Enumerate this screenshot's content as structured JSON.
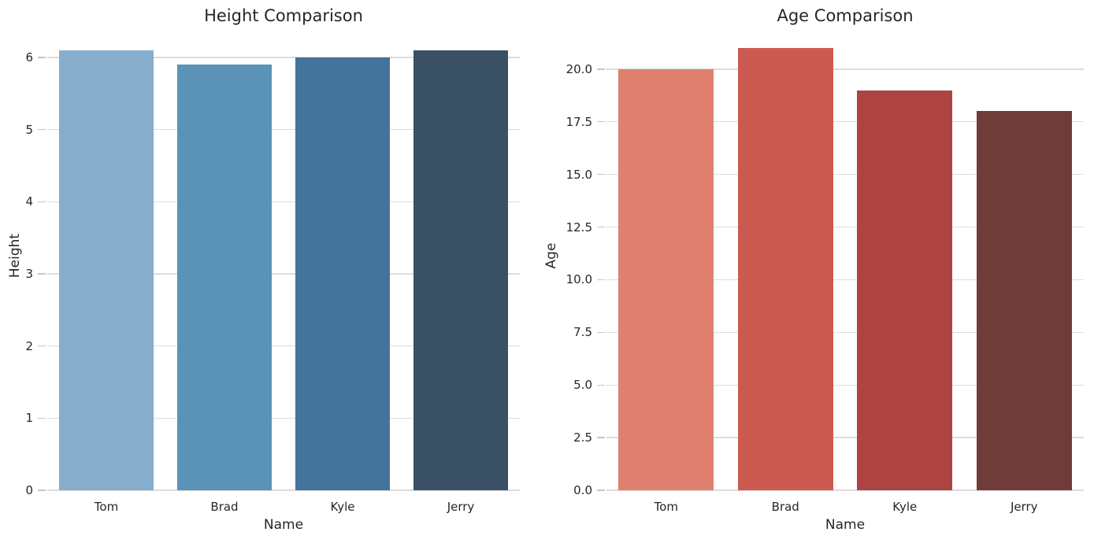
{
  "figure": {
    "background": "#ffffff",
    "text_color": "#262626",
    "grid_color": "#dcdcdc",
    "tick_color": "#c7c7c7"
  },
  "chart_data": [
    {
      "type": "bar",
      "title": "Height Comparison",
      "xlabel": "Name",
      "ylabel": "Height",
      "categories": [
        "Tom",
        "Brad",
        "Kyle",
        "Jerry"
      ],
      "values": [
        6.1,
        5.9,
        6.0,
        6.1
      ],
      "bar_colors": [
        "#86adcb",
        "#5b92b8",
        "#44739b",
        "#3a5065"
      ],
      "yticks": [
        0,
        1,
        2,
        3,
        4,
        5,
        6
      ],
      "ytick_labels": [
        "0",
        "1",
        "2",
        "3",
        "4",
        "5",
        "6"
      ],
      "ylim": [
        0,
        6.405
      ],
      "grid": true,
      "legend": "none",
      "bar_orientation": "vertical"
    },
    {
      "type": "bar",
      "title": "Age Comparison",
      "xlabel": "Name",
      "ylabel": "Age",
      "categories": [
        "Tom",
        "Brad",
        "Kyle",
        "Jerry"
      ],
      "values": [
        20,
        21,
        19,
        18
      ],
      "bar_colors": [
        "#e08070",
        "#cd5a50",
        "#ae4441",
        "#703c3a"
      ],
      "yticks": [
        0,
        2.5,
        5,
        7.5,
        10,
        12.5,
        15,
        17.5,
        20
      ],
      "ytick_labels": [
        "0.0",
        "2.5",
        "5.0",
        "7.5",
        "10.0",
        "12.5",
        "15.0",
        "17.5",
        "20.0"
      ],
      "ylim": [
        0,
        22.05
      ],
      "grid": true,
      "legend": "none",
      "bar_orientation": "vertical"
    }
  ]
}
